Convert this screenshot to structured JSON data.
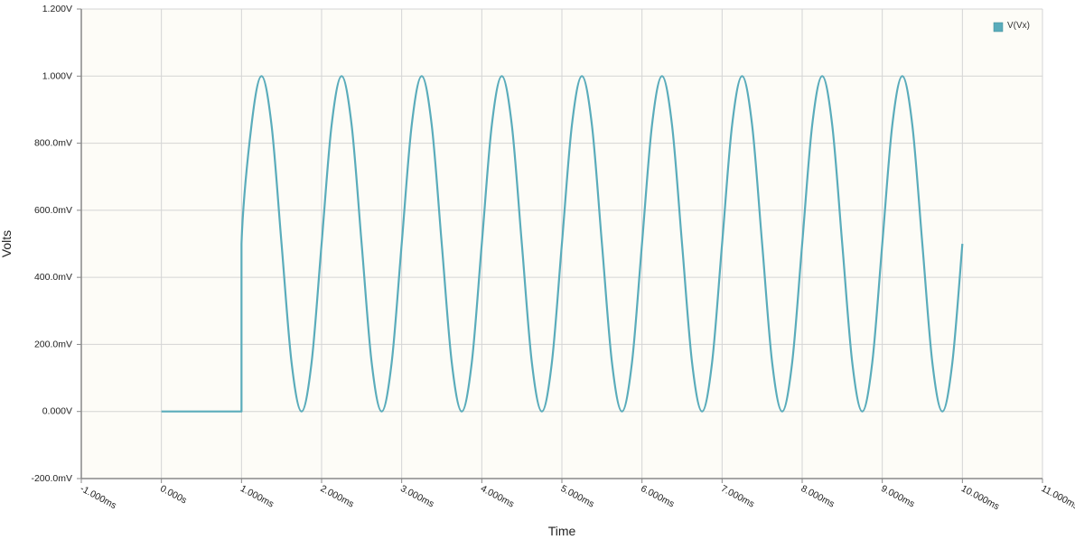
{
  "chart_data": {
    "type": "line",
    "title": "",
    "xlabel": "Time",
    "ylabel": "Volts",
    "xlim": [
      -1.0,
      11.0
    ],
    "ylim": [
      -0.2,
      1.2
    ],
    "x_unit": "ms",
    "y_unit": "V",
    "x_ticks": [
      {
        "value": -1,
        "label": "-1.000ms"
      },
      {
        "value": 0,
        "label": "0.000s"
      },
      {
        "value": 1,
        "label": "1.000ms"
      },
      {
        "value": 2,
        "label": "2.000ms"
      },
      {
        "value": 3,
        "label": "3.000ms"
      },
      {
        "value": 4,
        "label": "4.000ms"
      },
      {
        "value": 5,
        "label": "5.000ms"
      },
      {
        "value": 6,
        "label": "6.000ms"
      },
      {
        "value": 7,
        "label": "7.000ms"
      },
      {
        "value": 8,
        "label": "8.000ms"
      },
      {
        "value": 9,
        "label": "9.000ms"
      },
      {
        "value": 10,
        "label": "10.000ms"
      },
      {
        "value": 11,
        "label": "11.000ms"
      }
    ],
    "y_ticks": [
      {
        "value": 1.2,
        "label": "1.200V"
      },
      {
        "value": 1.0,
        "label": "1.000V"
      },
      {
        "value": 0.8,
        "label": "800.0mV"
      },
      {
        "value": 0.6,
        "label": "600.0mV"
      },
      {
        "value": 0.4,
        "label": "400.0mV"
      },
      {
        "value": 0.2,
        "label": "200.0mV"
      },
      {
        "value": 0.0,
        "label": "0.000V"
      },
      {
        "value": -0.2,
        "label": "-200.0mV"
      }
    ],
    "grid": true,
    "legend": {
      "position": "top-right",
      "entries": [
        {
          "name": "V(Vx)",
          "color": "#5aacbb"
        }
      ]
    },
    "series": [
      {
        "name": "V(Vx)",
        "color": "#5aacbb",
        "x": [
          0,
          1,
          1,
          1.125,
          1.25,
          1.375,
          1.5,
          1.625,
          1.75,
          1.875,
          2,
          2.125,
          2.25,
          2.375,
          2.5,
          2.625,
          2.75,
          2.875,
          3,
          3.125,
          3.25,
          3.375,
          3.5,
          3.625,
          3.75,
          3.875,
          4,
          4.125,
          4.25,
          4.375,
          4.5,
          4.625,
          4.75,
          4.875,
          5,
          5.125,
          5.25,
          5.375,
          5.5,
          5.625,
          5.75,
          5.875,
          6,
          6.125,
          6.25,
          6.375,
          6.5,
          6.625,
          6.75,
          6.875,
          7,
          7.125,
          7.25,
          7.375,
          7.5,
          7.625,
          7.75,
          7.875,
          8,
          8.125,
          8.25,
          8.375,
          8.5,
          8.625,
          8.75,
          8.875,
          9,
          9.125,
          9.25,
          9.375,
          9.5,
          9.625,
          9.75,
          9.875,
          10
        ],
        "y": [
          0,
          0,
          0.5,
          0.854,
          1.0,
          0.854,
          0.5,
          0.146,
          0.0,
          0.146,
          0.5,
          0.854,
          1.0,
          0.854,
          0.5,
          0.146,
          0.0,
          0.146,
          0.5,
          0.854,
          1.0,
          0.854,
          0.5,
          0.146,
          0.0,
          0.146,
          0.5,
          0.854,
          1.0,
          0.854,
          0.5,
          0.146,
          0.0,
          0.146,
          0.5,
          0.854,
          1.0,
          0.854,
          0.5,
          0.146,
          0.0,
          0.146,
          0.5,
          0.854,
          1.0,
          0.854,
          0.5,
          0.146,
          0.0,
          0.146,
          0.5,
          0.854,
          1.0,
          0.854,
          0.5,
          0.146,
          0.0,
          0.146,
          0.5,
          0.854,
          1.0,
          0.854,
          0.5,
          0.146,
          0.0,
          0.146,
          0.5,
          0.854,
          1.0,
          0.854,
          0.5,
          0.146,
          0.0,
          0.146,
          0.5
        ]
      }
    ]
  },
  "colors": {
    "plot_background": "#fdfcf7",
    "grid": "#d4d4d4",
    "axis": "#888888"
  }
}
